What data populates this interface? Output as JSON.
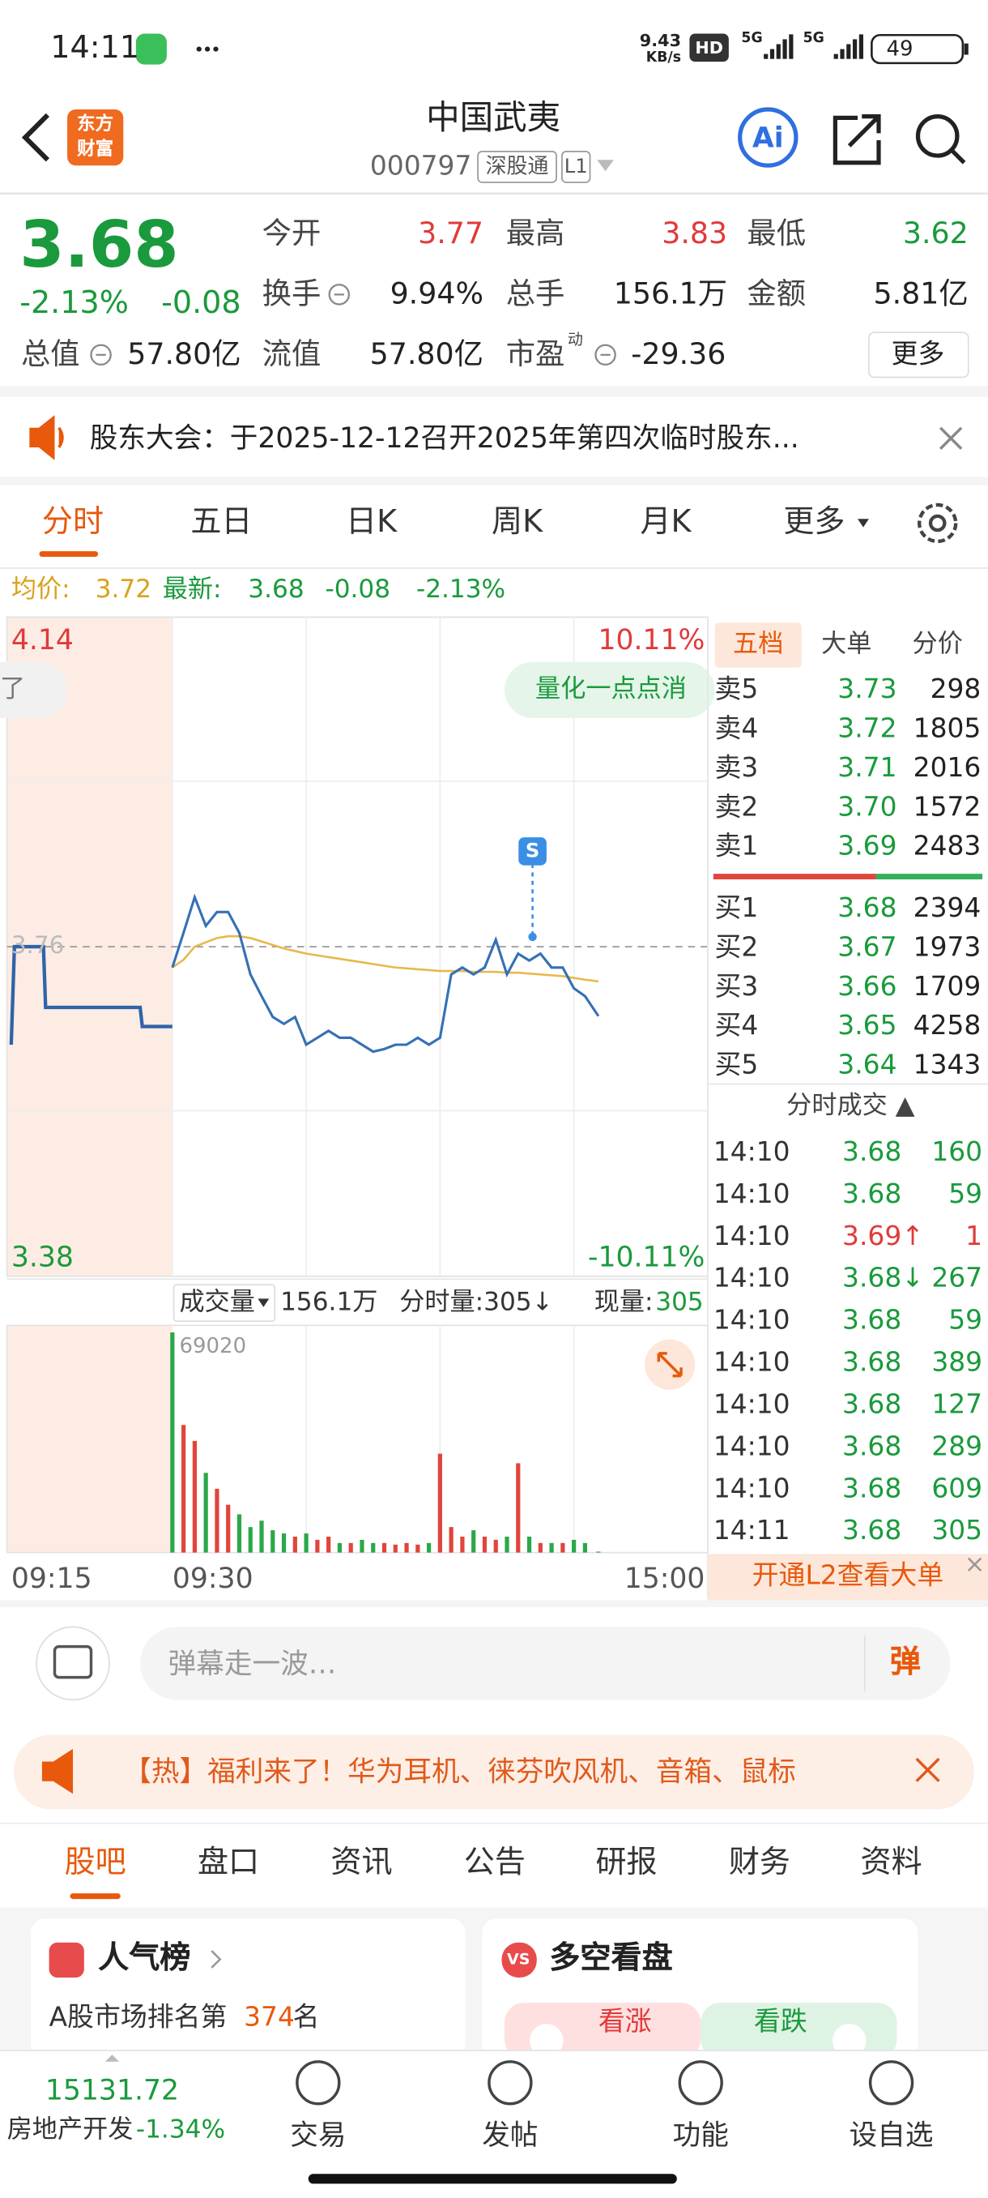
{
  "status_bar": {
    "time": "14:11",
    "speed": "9.43",
    "speed_unit": "KB/s",
    "hd": "HD",
    "network": "5G",
    "network2": "5G",
    "battery": "49"
  },
  "header": {
    "logo_top": "东方",
    "logo_bottom": "财富",
    "title": "中国武夷",
    "code": "000797",
    "tags": [
      "深股通",
      "L1"
    ],
    "ai": "Ai"
  },
  "quote": {
    "price": "3.68",
    "change_pct": "-2.13%",
    "change": "-0.08",
    "fields": [
      {
        "label": "今开",
        "value": "3.77"
      },
      {
        "label": "最高",
        "value": "3.83"
      },
      {
        "label": "最低",
        "value": "3.62"
      },
      {
        "label": "换手",
        "value": "9.94%"
      },
      {
        "label": "总手",
        "value": "156.1万"
      },
      {
        "label": "金额",
        "value": "5.81亿"
      },
      {
        "label": "总值",
        "value": "57.80亿"
      },
      {
        "label": "流值",
        "value": "57.80亿"
      },
      {
        "label": "市盈",
        "sup": "动",
        "value": "-29.36"
      }
    ],
    "more": "更多"
  },
  "notice": "股东大会：于2025-12-12召开2025年第四次临时股东...",
  "tabs": [
    "分时",
    "五日",
    "日K",
    "周K",
    "月K",
    "更多"
  ],
  "summary": {
    "avg_label": "均价:",
    "avg": "3.72",
    "last_label": "最新:",
    "last": "3.68",
    "change": "-0.08",
    "change_pct": "-2.13%"
  },
  "intraday": {
    "ylim": [
      3.38,
      4.14
    ],
    "prev_close": 3.76,
    "pct_top": "10.11%",
    "pct_bottom": "-10.11%",
    "badge": "量化一点点消",
    "left_tip": "了",
    "signal": "S",
    "volume_label": "成交量",
    "total_volume": "156.1万",
    "minute_volume": "分时量:305↓",
    "current_label": "现量:",
    "current_volume": "305",
    "vol_ylim": [
      0,
      69020
    ],
    "times": [
      "09:15",
      "09:30",
      "15:00"
    ],
    "pre_minutes": [
      0,
      0.3,
      3,
      3.2,
      12,
      12.2,
      15
    ],
    "pre_prices": [
      3.647,
      3.76,
      3.76,
      3.69,
      3.69,
      3.668,
      3.668
    ],
    "minutes": [
      0,
      5,
      10,
      15,
      20,
      25,
      30,
      35,
      40,
      45,
      50,
      55,
      60,
      65,
      70,
      75,
      80,
      85,
      90,
      95,
      100,
      105,
      110,
      115,
      120,
      125,
      130,
      135,
      140,
      145,
      150,
      155,
      160,
      165,
      170,
      175,
      180,
      185,
      191
    ],
    "prices": [
      3.736,
      3.776,
      3.817,
      3.784,
      3.8,
      3.8,
      3.776,
      3.728,
      3.703,
      3.679,
      3.671,
      3.679,
      3.647,
      3.655,
      3.663,
      3.655,
      3.655,
      3.647,
      3.639,
      3.642,
      3.647,
      3.647,
      3.655,
      3.647,
      3.655,
      3.728,
      3.736,
      3.728,
      3.736,
      3.768,
      3.728,
      3.752,
      3.744,
      3.752,
      3.736,
      3.736,
      3.712,
      3.703,
      3.68
    ],
    "avg": [
      3.736,
      3.745,
      3.76,
      3.765,
      3.77,
      3.772,
      3.772,
      3.77,
      3.766,
      3.762,
      3.758,
      3.755,
      3.752,
      3.75,
      3.748,
      3.746,
      3.744,
      3.742,
      3.74,
      3.738,
      3.736,
      3.735,
      3.734,
      3.733,
      3.732,
      3.732,
      3.732,
      3.731,
      3.731,
      3.731,
      3.73,
      3.73,
      3.729,
      3.728,
      3.727,
      3.726,
      3.724,
      3.722,
      3.72
    ],
    "volumes": [
      69020,
      40000,
      35000,
      25000,
      20000,
      15000,
      12000,
      8000,
      10000,
      7000,
      6000,
      5000,
      6000,
      4000,
      5000,
      3000,
      3000,
      4000,
      3000,
      3000,
      2500,
      3000,
      2500,
      3000,
      31000,
      8000,
      5000,
      7000,
      5000,
      4000,
      5000,
      28000,
      5000,
      3000,
      3000,
      3000,
      4000,
      3000,
      305
    ]
  },
  "order_book": {
    "tabs": [
      "五档",
      "大单",
      "分价"
    ],
    "asks": [
      {
        "label": "卖5",
        "price": "3.73",
        "volume": "298"
      },
      {
        "label": "卖4",
        "price": "3.72",
        "volume": "1805"
      },
      {
        "label": "卖3",
        "price": "3.71",
        "volume": "2016"
      },
      {
        "label": "卖2",
        "price": "3.70",
        "volume": "1572"
      },
      {
        "label": "卖1",
        "price": "3.69",
        "volume": "2483"
      }
    ],
    "bids": [
      {
        "label": "买1",
        "price": "3.68",
        "volume": "2394"
      },
      {
        "label": "买2",
        "price": "3.67",
        "volume": "1973"
      },
      {
        "label": "买3",
        "price": "3.66",
        "volume": "1709"
      },
      {
        "label": "买4",
        "price": "3.65",
        "volume": "4258"
      },
      {
        "label": "买5",
        "price": "3.64",
        "volume": "1343"
      }
    ]
  },
  "trades": {
    "title": "分时成交 ▲",
    "rows": [
      {
        "time": "14:10",
        "price": "3.68",
        "volume": "160"
      },
      {
        "time": "14:10",
        "price": "3.68",
        "volume": "59"
      },
      {
        "time": "14:10",
        "price": "3.69↑",
        "volume": "1"
      },
      {
        "time": "14:10",
        "price": "3.68↓",
        "volume": "267"
      },
      {
        "time": "14:10",
        "price": "3.68",
        "volume": "59"
      },
      {
        "time": "14:10",
        "price": "3.68",
        "volume": "389"
      },
      {
        "time": "14:10",
        "price": "3.68",
        "volume": "127"
      },
      {
        "time": "14:10",
        "price": "3.68",
        "volume": "289"
      },
      {
        "time": "14:10",
        "price": "3.68",
        "volume": "609"
      },
      {
        "time": "14:11",
        "price": "3.68",
        "volume": "305"
      }
    ]
  },
  "l2": "开通L2查看大单",
  "comment": {
    "placeholder": "弹幕走一波…",
    "button": "弹"
  },
  "promo": "【热】福利来了！华为耳机、徕芬吹风机、音箱、鼠标",
  "sections": [
    "股吧",
    "盘口",
    "资讯",
    "公告",
    "研报",
    "财务",
    "资料"
  ],
  "cards": {
    "rank_title": "人气榜",
    "rank_text": "A股市场排名第",
    "rank": "374",
    "rank_suffix": "名",
    "vs_icon": "VS",
    "vs_title": "多空看盘",
    "bull": "看涨",
    "bear": "看跌"
  },
  "bottom_bar": {
    "index_value": "15131.72",
    "index_name": "房地产开发",
    "index_change": "-1.34%",
    "items": [
      "交易",
      "发帖",
      "功能",
      "设自选"
    ]
  }
}
